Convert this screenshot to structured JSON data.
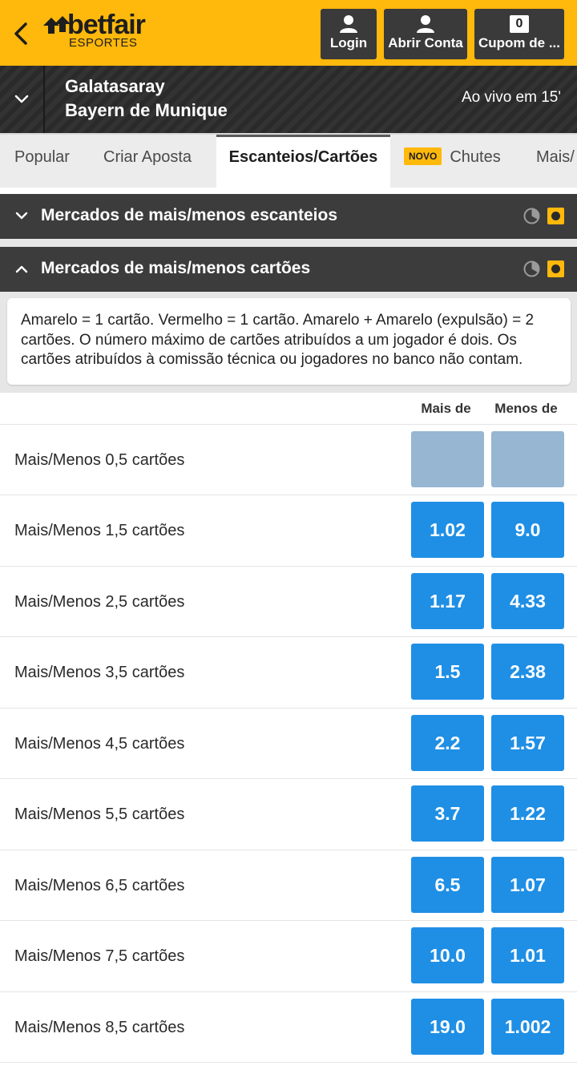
{
  "header": {
    "brand": "betfair",
    "brand_sub": "ESPORTES",
    "login_label": "Login",
    "abrir_conta_label": "Abrir Conta",
    "cupom_count": "0",
    "cupom_label": "Cupom de ...",
    "accent_color": "#ffb80c"
  },
  "event": {
    "team_home": "Galatasaray",
    "team_away": "Bayern de Munique",
    "status": "Ao vivo em 15'"
  },
  "tabs": [
    {
      "label": "Popular"
    },
    {
      "label": "Criar Aposta"
    },
    {
      "label": "Escanteios/Cartões",
      "active": true
    },
    {
      "label": "Chutes",
      "badge": "NOVO"
    },
    {
      "label": "Mais/"
    }
  ],
  "sections": [
    {
      "title": "Mercados de mais/menos escanteios",
      "expanded": false
    },
    {
      "title": "Mercados de mais/menos cartões",
      "expanded": true
    }
  ],
  "info_text": "Amarelo = 1 cartão. Vermelho = 1 cartão. Amarelo + Amarelo (expulsão) = 2 cartões. O número máximo de cartões atribuídos a um jogador é dois. Os cartões atribuídos à comissão técnica ou jogadores no banco não contam.",
  "columns": {
    "over": "Mais de",
    "under": "Menos de"
  },
  "markets": [
    {
      "label": "Mais/Menos 0,5 cartões",
      "over": "",
      "under": "",
      "suspended": true
    },
    {
      "label": "Mais/Menos 1,5 cartões",
      "over": "1.02",
      "under": "9.0"
    },
    {
      "label": "Mais/Menos 2,5 cartões",
      "over": "1.17",
      "under": "4.33"
    },
    {
      "label": "Mais/Menos 3,5 cartões",
      "over": "1.5",
      "under": "2.38"
    },
    {
      "label": "Mais/Menos 4,5 cartões",
      "over": "2.2",
      "under": "1.57"
    },
    {
      "label": "Mais/Menos 5,5 cartões",
      "over": "3.7",
      "under": "1.22"
    },
    {
      "label": "Mais/Menos 6,5 cartões",
      "over": "6.5",
      "under": "1.07"
    },
    {
      "label": "Mais/Menos 7,5 cartões",
      "over": "10.0",
      "under": "1.01"
    },
    {
      "label": "Mais/Menos 8,5 cartões",
      "over": "19.0",
      "under": "1.002"
    }
  ],
  "odds_color": "#1f8fe5",
  "suspended_color": "#96b6d2"
}
